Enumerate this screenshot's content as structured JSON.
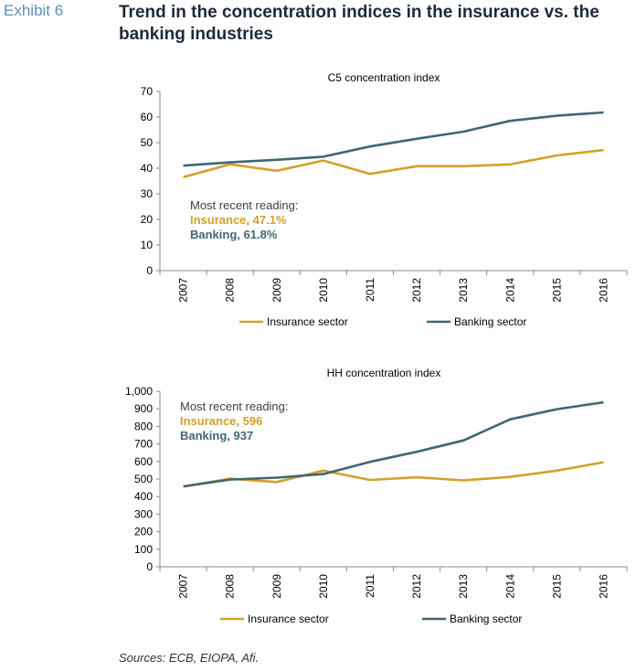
{
  "header": {
    "exhibit": "Exhibit 6",
    "title": "Trend in the concentration indices in the insurance vs. the banking industries"
  },
  "sources": "Sources: ECB, EIOPA, Afi.",
  "colors": {
    "insurance": "#d4a02a",
    "banking": "#3f6772"
  },
  "chart_data": [
    {
      "type": "line",
      "title": "C5 concentration index",
      "categories": [
        "2007",
        "2008",
        "2009",
        "2010",
        "2011",
        "2012",
        "2013",
        "2014",
        "2015",
        "2016"
      ],
      "series": [
        {
          "name": "Insurance sector",
          "color": "#d4a02a",
          "values": [
            36.5,
            41.5,
            39.0,
            43.0,
            37.8,
            40.8,
            40.8,
            41.5,
            45.0,
            47.1
          ]
        },
        {
          "name": "Banking sector",
          "color": "#3f6772",
          "values": [
            41.0,
            42.3,
            43.3,
            44.5,
            48.5,
            51.5,
            54.3,
            58.5,
            60.5,
            61.8
          ]
        }
      ],
      "ylim": [
        0,
        70
      ],
      "yticks": [
        0,
        10,
        20,
        30,
        40,
        50,
        60,
        70
      ],
      "ytick_labels": [
        "0",
        "10",
        "20",
        "30",
        "40",
        "50",
        "60",
        "70"
      ],
      "legend_position": "bottom",
      "annotation": {
        "heading": "Most recent reading:",
        "insurance": "Insurance, 47.1%",
        "banking": "Banking, 61.8%"
      }
    },
    {
      "type": "line",
      "title": "HH concentration index",
      "categories": [
        "2007",
        "2008",
        "2009",
        "2010",
        "2011",
        "2012",
        "2013",
        "2014",
        "2015",
        "2016"
      ],
      "series": [
        {
          "name": "Insurance sector",
          "color": "#d4a02a",
          "values": [
            458,
            502,
            483,
            548,
            495,
            510,
            492,
            512,
            548,
            596
          ]
        },
        {
          "name": "Banking sector",
          "color": "#3f6772",
          "values": [
            458,
            497,
            508,
            528,
            598,
            655,
            720,
            840,
            898,
            937
          ]
        }
      ],
      "ylim": [
        0,
        1000
      ],
      "yticks": [
        0,
        100,
        200,
        300,
        400,
        500,
        600,
        700,
        800,
        900,
        1000
      ],
      "ytick_labels": [
        "0",
        "100",
        "200",
        "300",
        "400",
        "500",
        "600",
        "700",
        "800",
        "900",
        "1,000"
      ],
      "legend_position": "bottom",
      "annotation": {
        "heading": "Most recent reading:",
        "insurance": "Insurance, 596",
        "banking": "Banking, 937"
      }
    }
  ]
}
